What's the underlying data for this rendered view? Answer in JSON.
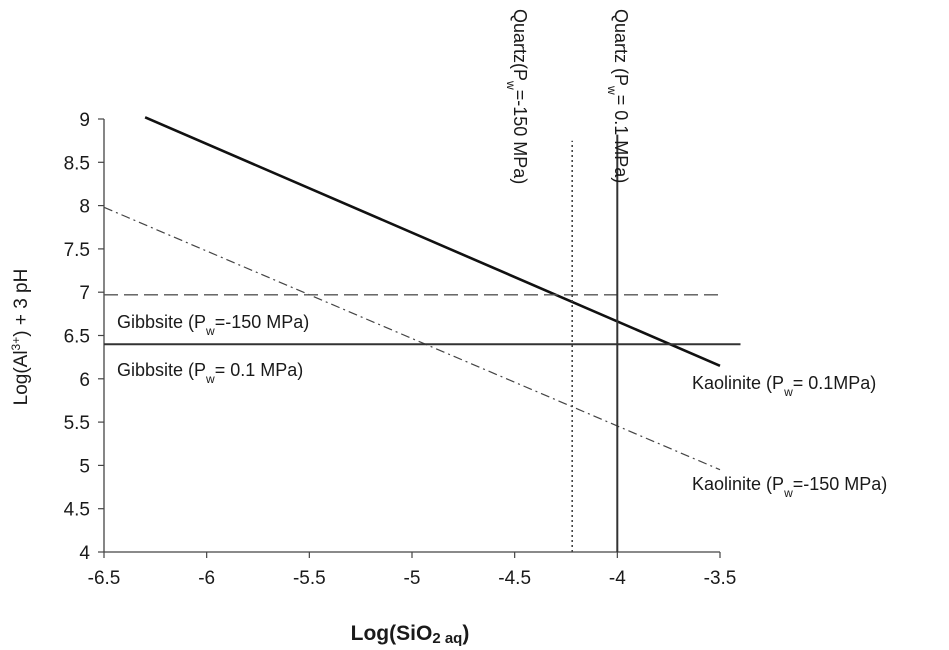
{
  "chart_data": {
    "type": "line",
    "title": "",
    "xlabel": {
      "main": "Log(SiO",
      "sub": "2 aq",
      "close": ")"
    },
    "ylabel": {
      "pre": "Log(Al",
      "sup": "3+",
      "post": ") + 3 pH"
    },
    "xlim": [
      -6.5,
      -3.5
    ],
    "ylim": [
      4,
      9
    ],
    "xticks": [
      "-6.5",
      "-6",
      "-5.5",
      "-5",
      "-4.5",
      "-4",
      "-3.5"
    ],
    "yticks": [
      "4",
      "4.5",
      "5",
      "5.5",
      "6",
      "6.5",
      "7",
      "7.5",
      "8",
      "8.5",
      "9"
    ],
    "grid": false,
    "legend": "none",
    "series": [
      {
        "key": "kaolinite_01",
        "style": "solid-thick",
        "x": [
          -6.3,
          -3.5
        ],
        "y": [
          9.02,
          6.15
        ],
        "label": {
          "pre": "Kaolinite (P",
          "sub": "w",
          "post": "= 0.1MPa)"
        }
      },
      {
        "key": "kaolinite_150",
        "style": "dash-dot",
        "x": [
          -6.5,
          -3.5
        ],
        "y": [
          7.98,
          4.95
        ],
        "label": {
          "pre": "Kaolinite (P",
          "sub": "w",
          "post": "=-150 MPa)"
        }
      },
      {
        "key": "gibbsite_150",
        "style": "long-dash",
        "x": [
          -6.5,
          -3.5
        ],
        "y": [
          6.97,
          6.97
        ],
        "label": {
          "pre": "Gibbsite (P",
          "sub": "w",
          "post": "=-150 MPa)"
        }
      },
      {
        "key": "gibbsite_01",
        "style": "solid",
        "x": [
          -6.5,
          -3.4
        ],
        "y": [
          6.4,
          6.4
        ],
        "label": {
          "pre": "Gibbsite (P",
          "sub": "w",
          "post": "= 0.1 MPa)"
        }
      },
      {
        "key": "quartz_150",
        "style": "dotted",
        "x": [
          -4.22,
          -4.22
        ],
        "y": [
          4,
          8.75
        ],
        "label": {
          "pre": "Quartz(P",
          "sub": "w",
          "post": "=-150 MPa)"
        }
      },
      {
        "key": "quartz_01",
        "style": "solid",
        "x": [
          -4,
          -4
        ],
        "y": [
          4,
          8.82
        ],
        "label": {
          "pre": "Quartz (P",
          "sub": "w",
          "post": "= 0.1 MPa)"
        }
      }
    ]
  }
}
